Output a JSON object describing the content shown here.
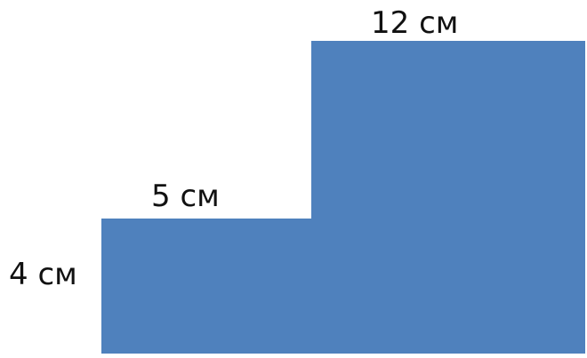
{
  "diagram": {
    "shape_color": "#4f81bd",
    "labels": {
      "top_width": "12 см",
      "step_width": "5 см",
      "left_height": "4 см"
    }
  }
}
